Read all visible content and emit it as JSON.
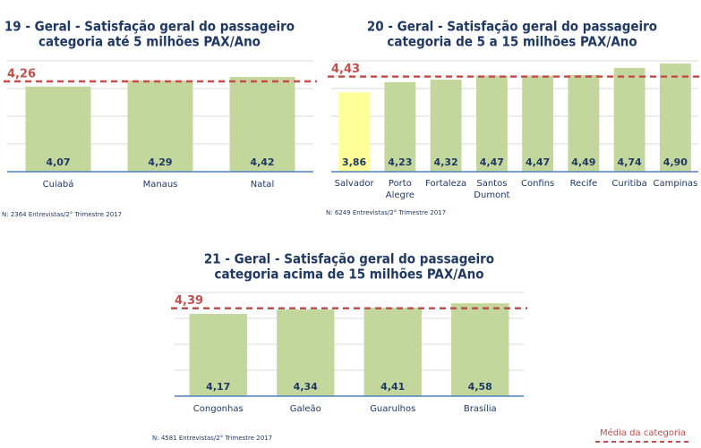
{
  "chart_data": [
    {
      "type": "bar",
      "title": "19 - Geral - Satisfação geral do passageiro",
      "subtitle": "categoria até 5 milhões PAX/Ano",
      "categories": [
        "Cuiabá",
        "Manaus",
        "Natal"
      ],
      "values": [
        4.07,
        4.29,
        4.42
      ],
      "value_labels": [
        "4,07",
        "4,29",
        "4,42"
      ],
      "color": "#c3d69b",
      "ylim": [
        1,
        5
      ],
      "grid": true,
      "reference_line": {
        "value": 4.26,
        "label": "4,26",
        "color": "#c0504d"
      },
      "note": "N: 2364 Entrevistas/2° Trimestre 2017"
    },
    {
      "type": "bar",
      "title": "20 - Geral - Satisfação geral do passageiro",
      "subtitle": "categoria de 5 a 15 milhões PAX/Ano",
      "categories": [
        "Salvador",
        "Porto Alegre",
        "Fortaleza",
        "Santos Dumont",
        "Confins",
        "Recife",
        "Curitiba",
        "Campinas"
      ],
      "values": [
        3.86,
        4.23,
        4.32,
        4.47,
        4.47,
        4.49,
        4.74,
        4.9
      ],
      "value_labels": [
        "3,86",
        "4,23",
        "4,32",
        "4,47",
        "4,47",
        "4,49",
        "4,74",
        "4,90"
      ],
      "colors": [
        "#ffff99",
        "#c3d69b",
        "#c3d69b",
        "#c3d69b",
        "#c3d69b",
        "#c3d69b",
        "#c3d69b",
        "#c3d69b"
      ],
      "ylim": [
        1,
        5
      ],
      "grid": true,
      "reference_line": {
        "value": 4.43,
        "label": "4,43",
        "color": "#c0504d"
      },
      "note": "N: 6249 Entrevistas/2° Trimestre 2017"
    },
    {
      "type": "bar",
      "title": "21 - Geral - Satisfação geral do passageiro",
      "subtitle": "categoria acima de 15 milhões PAX/Ano",
      "categories": [
        "Congonhas",
        "Galeão",
        "Guarulhos",
        "Brasília"
      ],
      "values": [
        4.17,
        4.34,
        4.41,
        4.58
      ],
      "value_labels": [
        "4,17",
        "4,34",
        "4,41",
        "4,58"
      ],
      "color": "#c3d69b",
      "ylim": [
        1,
        5
      ],
      "grid": true,
      "reference_line": {
        "value": 4.39,
        "label": "4,39",
        "color": "#c0504d"
      },
      "note": "N: 4581 Entrevistas/2° Trimestre 2017"
    }
  ],
  "legend": "Média da categoria"
}
